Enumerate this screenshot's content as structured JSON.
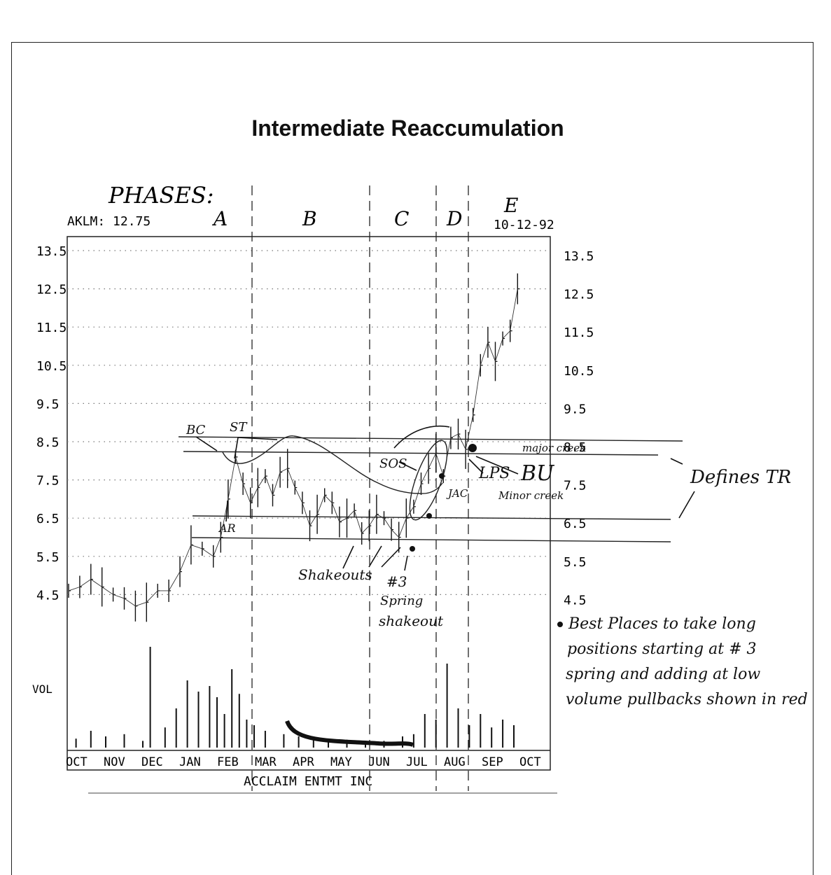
{
  "title": "Intermediate Reaccumulation",
  "header": {
    "ticker_label": "AKLM: 12.75",
    "date_label": "10-12-92",
    "phases_label": "PHASES:",
    "company": "ACCLAIM ENTMT INC",
    "volume_label": "VOL"
  },
  "phases": [
    "A",
    "B",
    "C",
    "D",
    "E"
  ],
  "annotations": {
    "bc": "BC",
    "st": "ST",
    "ar": "AR",
    "sos": "SOS",
    "lps": "LPS",
    "bu": "BU",
    "jac": "JAC",
    "major_creek": "major creek",
    "minor_creek": "Minor creek",
    "defines_tr": "Defines TR",
    "shakeouts": "Shakeouts",
    "number3": "#3",
    "spring": "Spring",
    "shakeout": "shakeout",
    "note_lines": [
      "Best Places to take long",
      "positions starting at # 3",
      "spring and adding at low",
      "volume pullbacks shown in red"
    ]
  },
  "chart_data": {
    "type": "bar",
    "title": "Intermediate Reaccumulation",
    "months": [
      "OCT",
      "NOV",
      "DEC",
      "JAN",
      "FEB",
      "MAR",
      "APR",
      "MAY",
      "JUN",
      "JUL",
      "AUG",
      "SEP",
      "OCT"
    ],
    "y_ticks_left": [
      "13.5",
      "12.5",
      "11.5",
      "10.5",
      "9.5",
      "8.5",
      "7.5",
      "6.5",
      "5.5",
      "4.5"
    ],
    "y_ticks_right": [
      "13.5",
      "12.5",
      "11.5",
      "10.5",
      "9.5",
      "8.5",
      "7.5",
      "6.5",
      "5.5",
      "4.5"
    ],
    "ylim": [
      4.0,
      13.9
    ],
    "grid": true,
    "series": [
      {
        "values": [
          [
            0.0,
            4.6
          ],
          [
            0.3,
            4.7
          ],
          [
            0.6,
            4.9
          ],
          [
            0.9,
            4.7
          ],
          [
            1.2,
            4.5
          ],
          [
            1.5,
            4.4
          ],
          [
            1.8,
            4.2
          ],
          [
            2.1,
            4.3
          ],
          [
            2.4,
            4.6
          ],
          [
            2.7,
            4.6
          ],
          [
            3.0,
            5.1
          ],
          [
            3.3,
            5.8
          ],
          [
            3.6,
            5.7
          ],
          [
            3.9,
            5.5
          ],
          [
            4.1,
            6.0
          ],
          [
            4.3,
            7.0
          ],
          [
            4.5,
            8.1
          ],
          [
            4.7,
            7.4
          ],
          [
            4.9,
            6.9
          ],
          [
            5.1,
            7.3
          ],
          [
            5.3,
            7.6
          ],
          [
            5.5,
            7.1
          ],
          [
            5.7,
            7.7
          ],
          [
            5.9,
            7.8
          ],
          [
            6.1,
            7.3
          ],
          [
            6.3,
            6.9
          ],
          [
            6.5,
            6.3
          ],
          [
            6.7,
            6.6
          ],
          [
            6.9,
            7.1
          ],
          [
            7.1,
            6.9
          ],
          [
            7.3,
            6.4
          ],
          [
            7.5,
            6.5
          ],
          [
            7.7,
            6.7
          ],
          [
            7.9,
            6.1
          ],
          [
            8.1,
            6.3
          ],
          [
            8.3,
            6.6
          ],
          [
            8.5,
            6.5
          ],
          [
            8.7,
            6.2
          ],
          [
            8.9,
            6.0
          ],
          [
            9.1,
            6.5
          ],
          [
            9.3,
            6.8
          ],
          [
            9.5,
            7.4
          ],
          [
            9.7,
            7.8
          ],
          [
            9.9,
            8.2
          ],
          [
            10.1,
            7.6
          ],
          [
            10.3,
            8.6
          ],
          [
            10.5,
            8.7
          ],
          [
            10.7,
            8.3
          ],
          [
            10.9,
            9.2
          ],
          [
            11.1,
            10.5
          ],
          [
            11.3,
            11.1
          ],
          [
            11.5,
            10.6
          ],
          [
            11.7,
            11.2
          ],
          [
            11.9,
            11.4
          ],
          [
            12.1,
            12.5
          ]
        ]
      }
    ],
    "volume": [
      [
        0.2,
        0.08
      ],
      [
        0.6,
        0.15
      ],
      [
        1.0,
        0.1
      ],
      [
        1.5,
        0.12
      ],
      [
        2.0,
        0.06
      ],
      [
        2.2,
        0.9
      ],
      [
        2.6,
        0.18
      ],
      [
        2.9,
        0.35
      ],
      [
        3.2,
        0.6
      ],
      [
        3.5,
        0.5
      ],
      [
        3.8,
        0.55
      ],
      [
        4.0,
        0.45
      ],
      [
        4.2,
        0.3
      ],
      [
        4.4,
        0.7
      ],
      [
        4.6,
        0.48
      ],
      [
        4.8,
        0.25
      ],
      [
        5.0,
        0.2
      ],
      [
        5.3,
        0.15
      ],
      [
        5.8,
        0.12
      ],
      [
        6.2,
        0.1
      ],
      [
        6.6,
        0.08
      ],
      [
        7.0,
        0.08
      ],
      [
        7.5,
        0.07
      ],
      [
        8.0,
        0.06
      ],
      [
        8.5,
        0.06
      ],
      [
        9.0,
        0.1
      ],
      [
        9.3,
        0.12
      ],
      [
        9.6,
        0.3
      ],
      [
        9.9,
        0.25
      ],
      [
        10.2,
        0.75
      ],
      [
        10.5,
        0.35
      ],
      [
        10.8,
        0.2
      ],
      [
        11.1,
        0.3
      ],
      [
        11.4,
        0.18
      ],
      [
        11.7,
        0.25
      ],
      [
        12.0,
        0.2
      ]
    ]
  }
}
